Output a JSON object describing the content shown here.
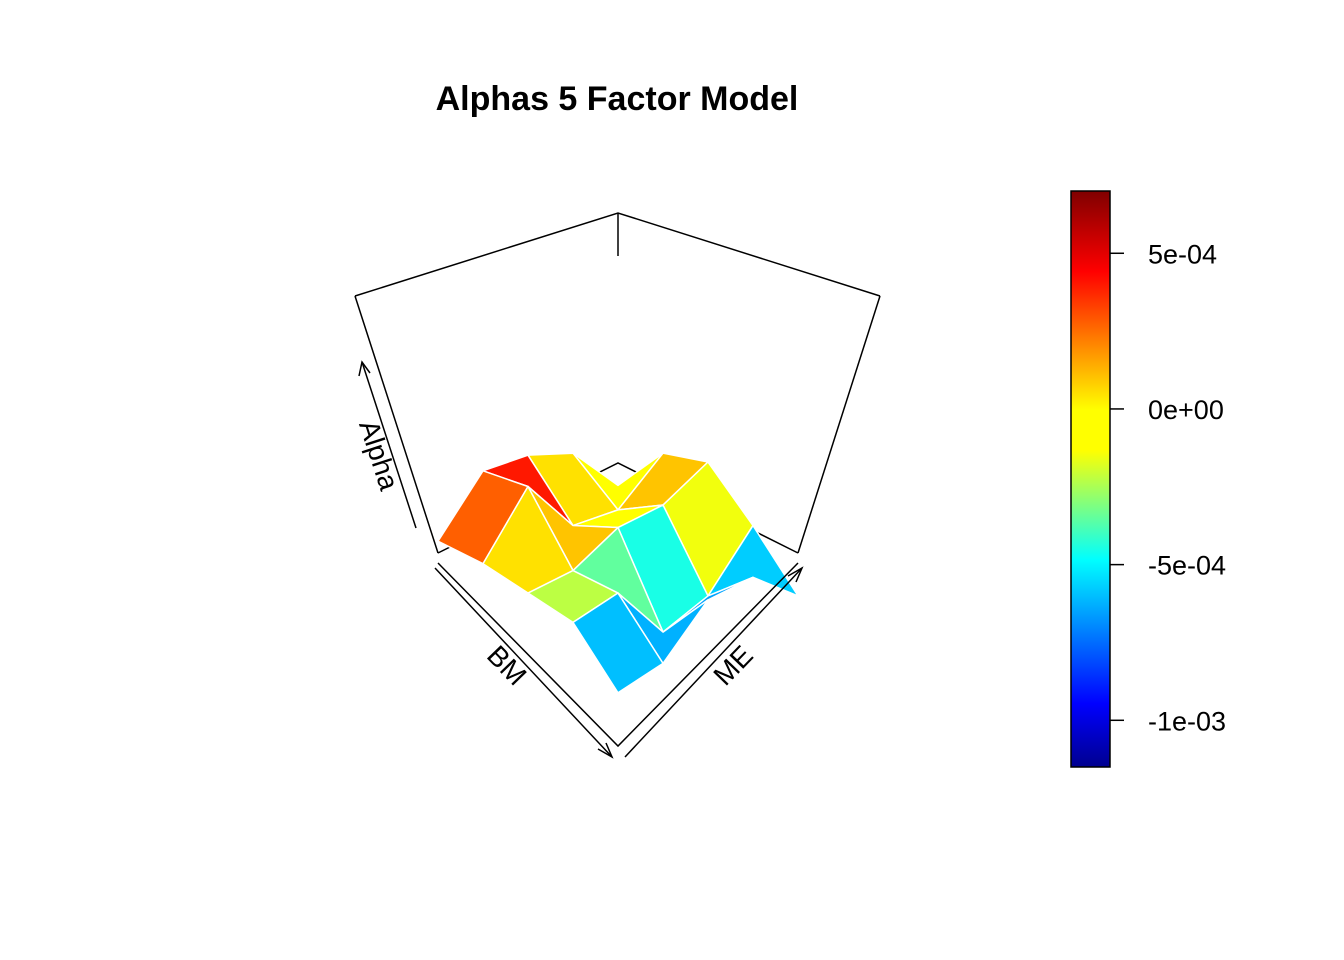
{
  "chart_data": {
    "type": "surface3d",
    "title": "Alphas 5 Factor Model",
    "axes": {
      "x_label": "BM",
      "y_label": "ME",
      "z_label": "Alpha"
    },
    "colorbar": {
      "palette": "jet",
      "range": [
        -0.00115,
        0.0007
      ],
      "ticks": [
        {
          "value": 0.0005,
          "label": "5e-04"
        },
        {
          "value": 0.0,
          "label": "0e+00"
        },
        {
          "value": -0.0005,
          "label": "-5e-04"
        },
        {
          "value": -0.001,
          "label": "-1e-03"
        }
      ]
    },
    "grid": {
      "note": "approximate values read from 3D surface; rows = BM index, cols = ME index",
      "values": [
        [
          -0.0006,
          0.0002,
          0.0004,
          -0.0002,
          -0.0009
        ],
        [
          0.0002,
          -0.0003,
          0.0001,
          -0.0009,
          -0.0003
        ],
        [
          0.0005,
          -0.0002,
          0.0001,
          -0.0011,
          -0.0003
        ],
        [
          0.0006,
          0.0007,
          -0.0002,
          -0.0002,
          -0.0009
        ],
        [
          -0.0001,
          -0.0001,
          -0.0002,
          -0.0003,
          -0.001
        ]
      ]
    }
  }
}
